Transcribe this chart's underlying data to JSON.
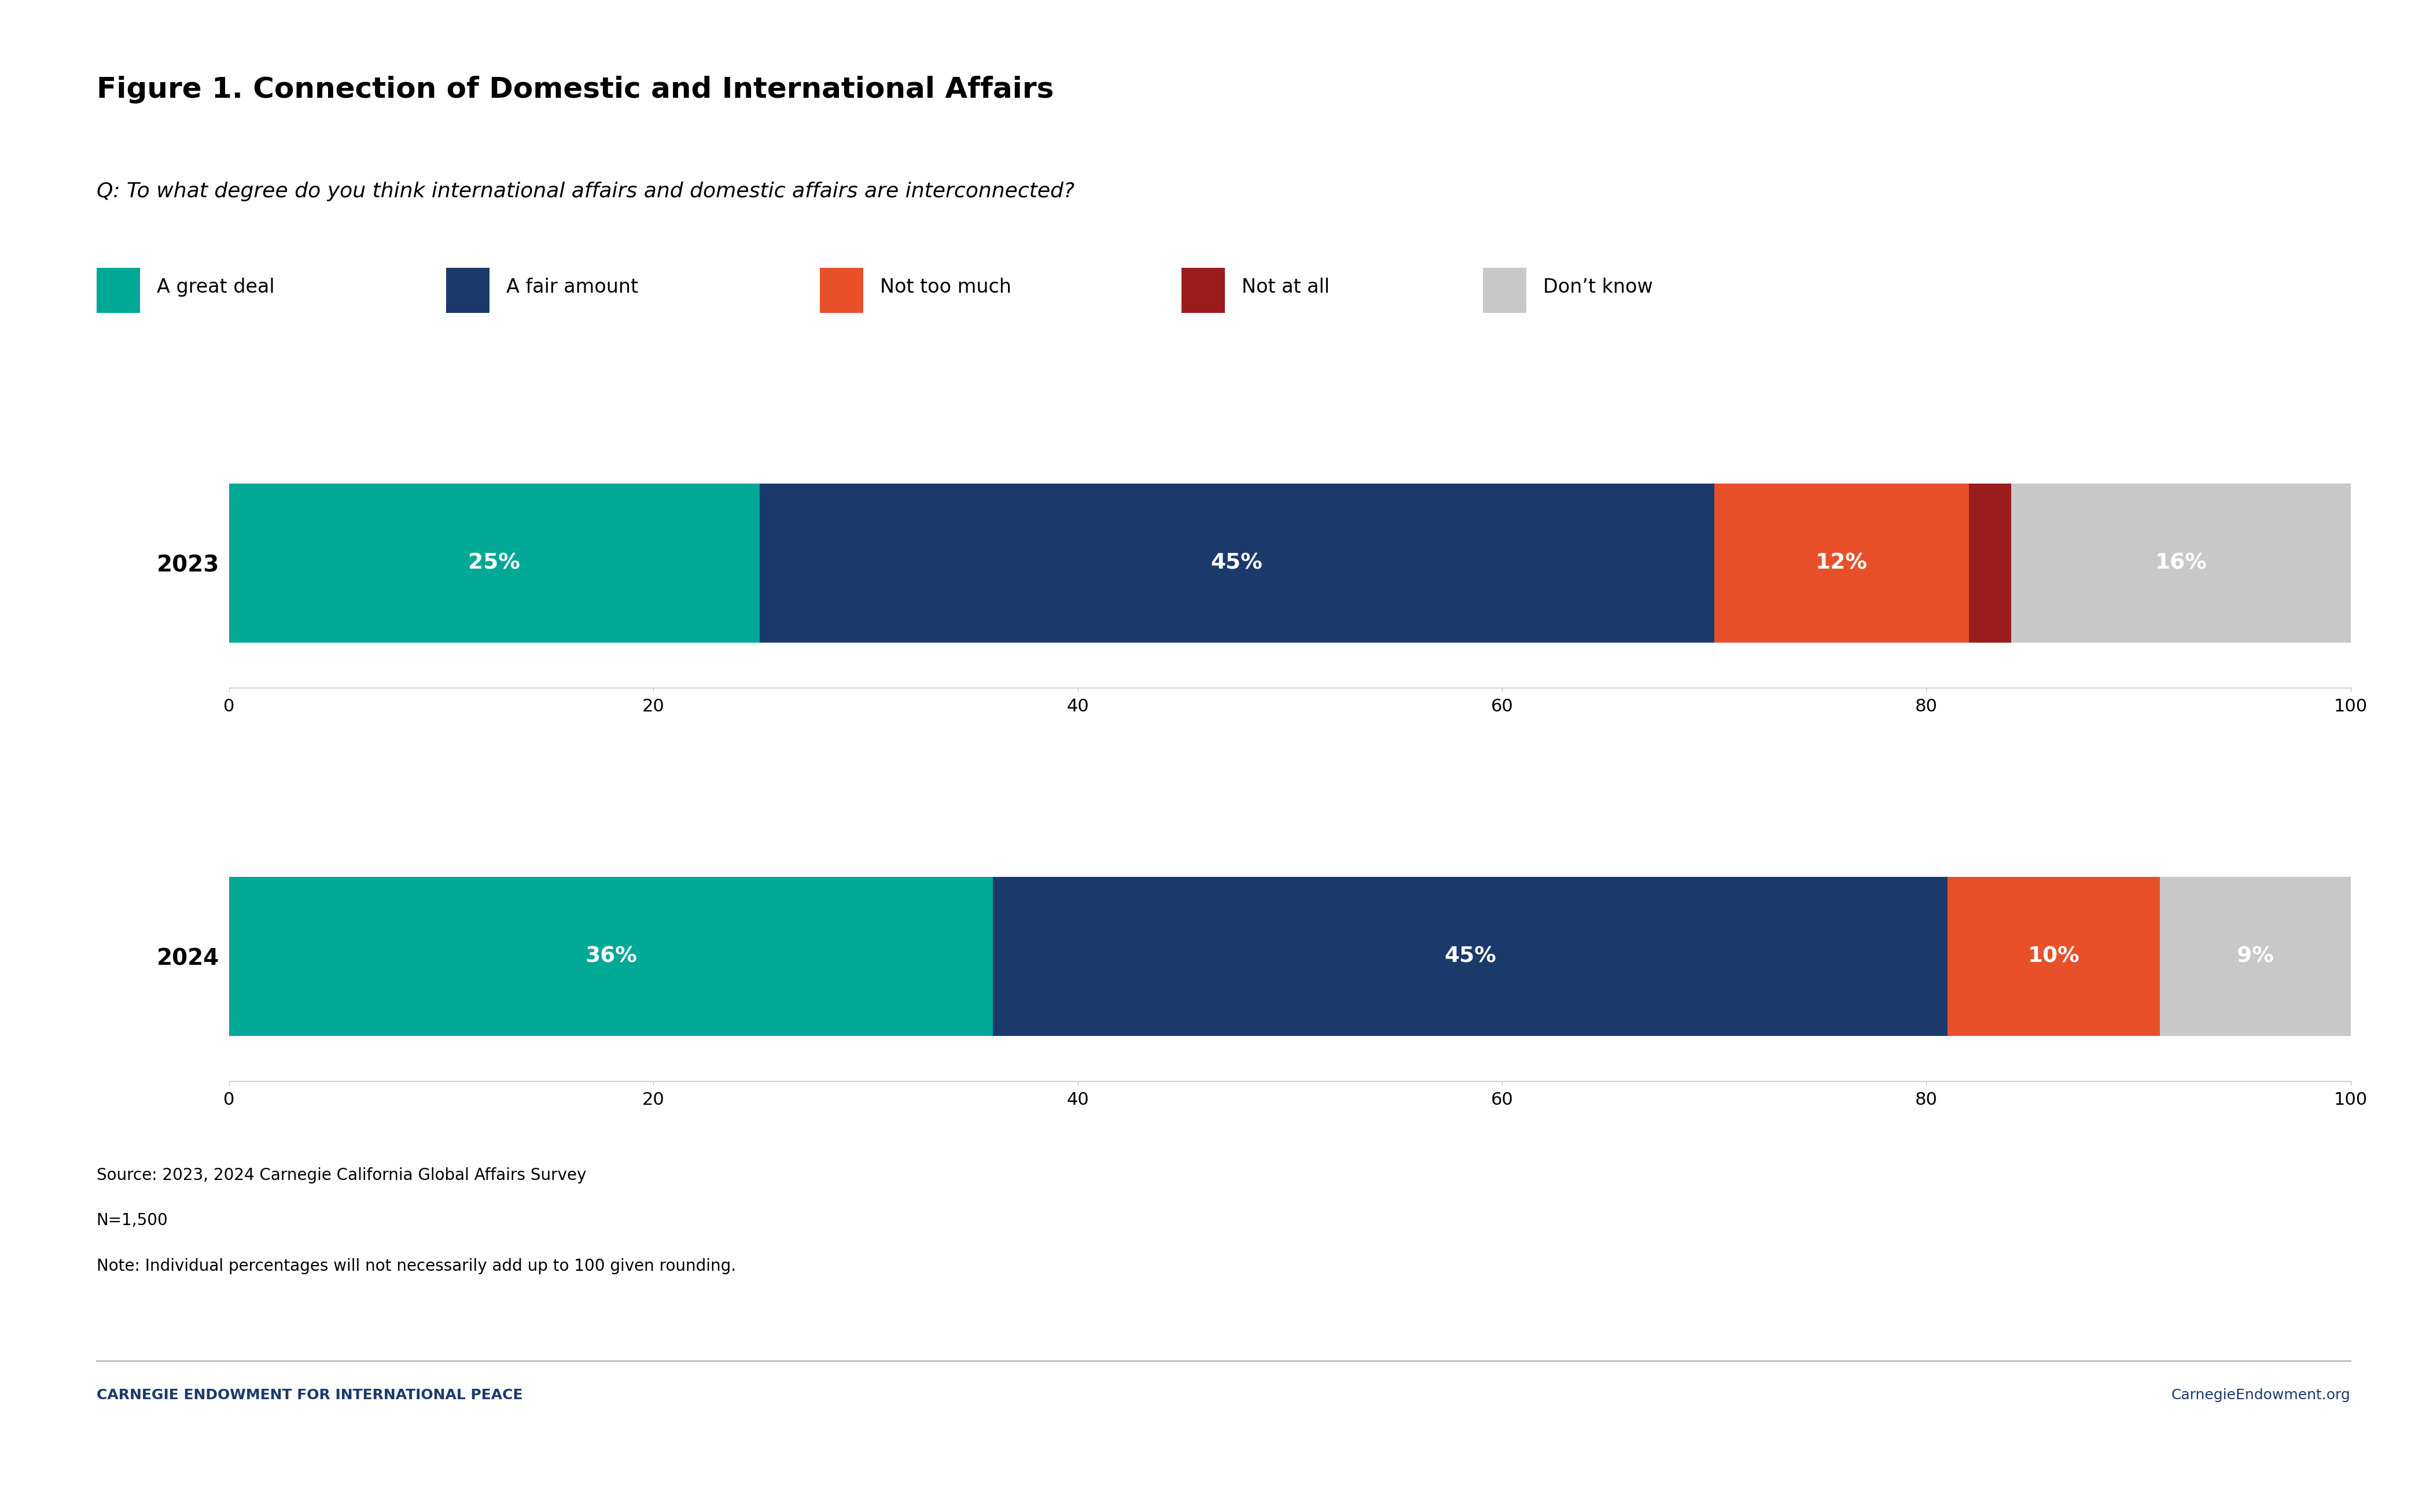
{
  "title": "Figure 1. Connection of Domestic and International Affairs",
  "subtitle": "Q: To what degree do you think international affairs and domestic affairs are interconnected?",
  "legend_labels": [
    "A great deal",
    "A fair amount",
    "Not too much",
    "Not at all",
    "Don’t know"
  ],
  "colors": [
    "#00A896",
    "#1B3A6B",
    "#E8502A",
    "#9B1C1C",
    "#C8C8C8"
  ],
  "years": [
    "2023",
    "2024"
  ],
  "data": {
    "2023": [
      25,
      45,
      12,
      2,
      16
    ],
    "2024": [
      36,
      45,
      10,
      0,
      9
    ]
  },
  "bar_labels": {
    "2023": [
      "25%",
      "45%",
      "12%",
      "",
      "16%"
    ],
    "2024": [
      "36%",
      "45%",
      "10%",
      "",
      "9%"
    ]
  },
  "source_lines": [
    "Source: 2023, 2024 Carnegie California Global Affairs Survey",
    "N=1,500",
    "Note: Individual percentages will not necessarily add up to 100 given rounding."
  ],
  "footer_left": "CARNEGIE ENDOWMENT FOR INTERNATIONAL PEACE",
  "footer_right": "CarnegieEndowment.org",
  "bg_color": "#FFFFFF",
  "text_color": "#000000",
  "title_fontsize": 36,
  "subtitle_fontsize": 26,
  "legend_fontsize": 24,
  "bar_label_fontsize": 27,
  "year_label_fontsize": 28,
  "axis_tick_fontsize": 22,
  "source_fontsize": 20,
  "footer_fontsize": 18,
  "xlim": [
    0,
    100
  ]
}
